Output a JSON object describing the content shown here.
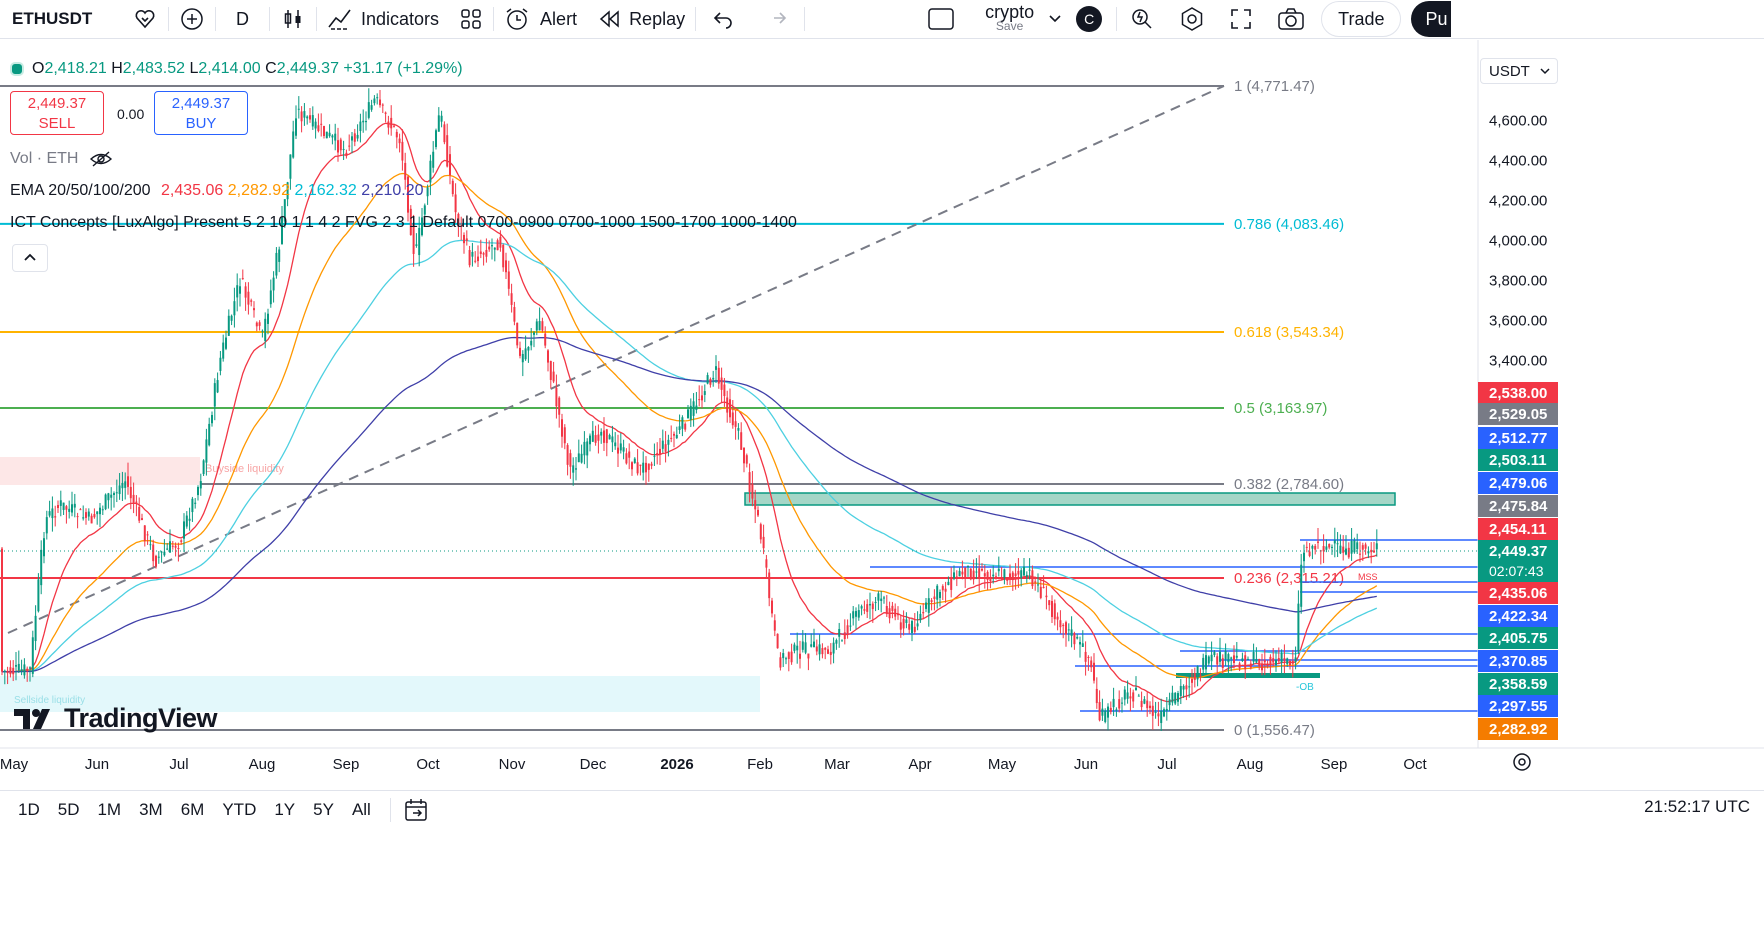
{
  "toolbar": {
    "symbol": "ETHUSDT",
    "interval": "D",
    "indicators": "Indicators",
    "alert": "Alert",
    "replay": "Replay",
    "layout_name": "crypto",
    "layout_sub": "Save",
    "avatar": "C",
    "trade": "Trade",
    "publish": "Pu"
  },
  "legend": {
    "o_label": "O",
    "o": "2,418.21",
    "h_label": "H",
    "h": "2,483.52",
    "l_label": "L",
    "l": "2,414.00",
    "c_label": "C",
    "c": "2,449.37",
    "change": "+31.17 (+1.29%)",
    "sell_price": "2,449.37",
    "sell_label": "SELL",
    "spread": "0.00",
    "buy_price": "2,449.37",
    "buy_label": "BUY",
    "vol": "Vol · ETH",
    "ema_name": "EMA 20/50/100/200",
    "ema20": "2,435.06",
    "ema50": "2,282.92",
    "ema100": "2,162.32",
    "ema200": "2,210.20",
    "ict": "ICT Concepts [LuxAlgo] Present 5 2 10 1 1 4 2 FVG 2 3 1 Default 0700-0900 0700-1000 1500-1700 1000-1400"
  },
  "currency": "USDT",
  "fib_levels": [
    {
      "label": "1 (4,771.47)",
      "value": 4771.47,
      "color": "#787b86"
    },
    {
      "label": "0.786 (4,083.46)",
      "value": 4083.46,
      "color": "#00bcd4"
    },
    {
      "label": "0.618 (3,543.34)",
      "value": 3543.34,
      "color": "#ffb300"
    },
    {
      "label": "0.5 (3,163.97)",
      "value": 3163.97,
      "color": "#4caf50"
    },
    {
      "label": "0.382 (2,784.60)",
      "value": 2784.6,
      "color": "#787b86"
    },
    {
      "label": "0.236 (2,315.21)",
      "value": 2315.21,
      "color": "#f23645"
    },
    {
      "label": "0 (1,556.47)",
      "value": 1556.47,
      "color": "#787b86"
    }
  ],
  "annotations": {
    "buyside": "Buyside liquidity",
    "sellside": "Sellside liquidity",
    "ob": "-OB",
    "mss": "MSS"
  },
  "price_axis": [
    "4,600.00",
    "4,400.00",
    "4,200.00",
    "4,000.00",
    "3,800.00",
    "3,600.00",
    "3,400.00"
  ],
  "price_tags": [
    {
      "text": "2,538.00",
      "bg": "#f23645"
    },
    {
      "text": "2,529.05",
      "bg": "#787b86"
    },
    {
      "text": "2,512.77",
      "bg": "#2962ff"
    },
    {
      "text": "2,503.11",
      "bg": "#089981"
    },
    {
      "text": "2,479.06",
      "bg": "#2962ff"
    },
    {
      "text": "2,475.84",
      "bg": "#787b86"
    },
    {
      "text": "2,454.11",
      "bg": "#f23645"
    },
    {
      "text": "2,449.37",
      "bg": "#089981",
      "sub": "02:07:43"
    },
    {
      "text": "2,435.06",
      "bg": "#f23645"
    },
    {
      "text": "2,422.34",
      "bg": "#2962ff"
    },
    {
      "text": "2,405.75",
      "bg": "#089981"
    },
    {
      "text": "2,370.85",
      "bg": "#2962ff"
    },
    {
      "text": "2,358.59",
      "bg": "#089981"
    },
    {
      "text": "2,297.55",
      "bg": "#2962ff"
    },
    {
      "text": "2,282.92",
      "bg": "#f57c00"
    }
  ],
  "time_axis": [
    "May",
    "Jun",
    "Jul",
    "Aug",
    "Sep",
    "Oct",
    "Nov",
    "Dec",
    "2026",
    "Feb",
    "Mar",
    "Apr",
    "May",
    "Jun",
    "Jul",
    "Aug",
    "Sep",
    "Oct"
  ],
  "ranges": [
    "1D",
    "5D",
    "1M",
    "3M",
    "6M",
    "YTD",
    "1Y",
    "5Y",
    "All"
  ],
  "clock": "21:52:17 UTC",
  "brand": "TradingView",
  "colors": {
    "up": "#089981",
    "down": "#f23645",
    "ema20": "#f23645",
    "ema50": "#ff9800",
    "ema100": "#4dd0e1",
    "ema200": "#3f3fa8"
  }
}
